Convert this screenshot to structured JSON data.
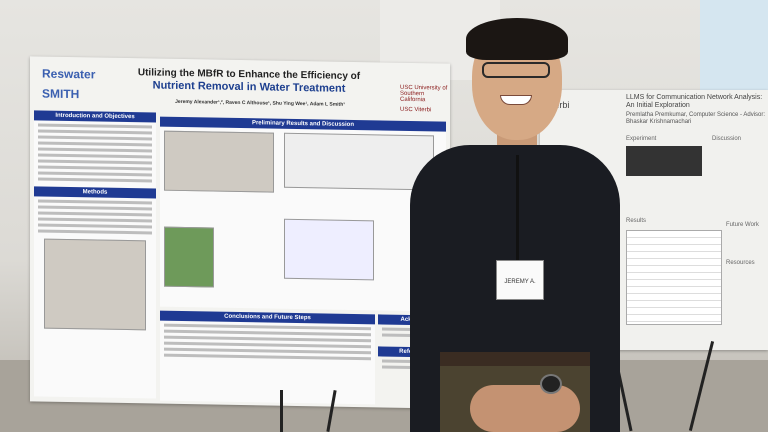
{
  "poster_left": {
    "logos": [
      "Reswater",
      "SMITH",
      "USC University of Southern California",
      "USC Viterbi"
    ],
    "title_line1": "Utilizing the MBfR to Enhance the Efficiency of",
    "title_line2": "Nutrient Removal in Water Treatment",
    "authors": "Jeremy Alexander¹,², Raven C Althouse¹, Shu Ying Wee¹, Adam L Smith¹",
    "sections": {
      "intro": "Introduction and Objectives",
      "methods": "Methods",
      "results": "Preliminary Results and Discussion",
      "conclusions": "Conclusions and Future Steps",
      "acknowledgements": "Acknow",
      "references": "Referenc"
    }
  },
  "poster_right": {
    "logo": "Viterbi",
    "title": "LLMS for Communication Network Analysis: An Initial Exploration",
    "authors": "Premlatha Premkumar, Computer Science - Advisor: Bhaskar Krishnamachari",
    "sections": [
      "Experiment",
      "Discussion",
      "Results",
      "Future Work",
      "Resources"
    ]
  },
  "name_badge": "JEREMY A.",
  "colors": {
    "poster_header": "#1f3a93",
    "shirt": "#1a1c22"
  }
}
